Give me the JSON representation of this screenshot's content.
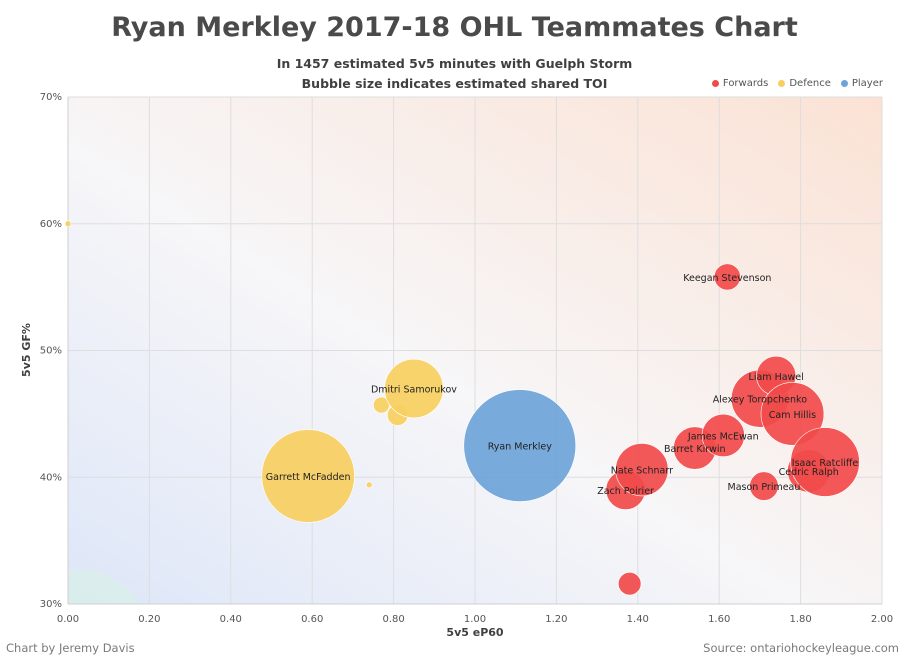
{
  "colors": {
    "forwards": "#f24a4a",
    "defence": "#f7cf5f",
    "player": "#6ea3d9",
    "grid": "#dedede",
    "axis_text": "#555555"
  },
  "chart_data": {
    "type": "scatter",
    "title": "Ryan Merkley 2017-18 OHL Teammates Chart",
    "subtitle": [
      "In 1457 estimated 5v5 minutes with Guelph Storm",
      "Bubble size indicates estimated shared TOI"
    ],
    "xlabel": "5v5 eP60",
    "ylabel": "5v5 GF%",
    "xlim": [
      0.0,
      2.0
    ],
    "ylim": [
      30,
      70
    ],
    "x_ticks": [
      "0.00",
      "0.20",
      "0.40",
      "0.60",
      "0.80",
      "1.00",
      "1.20",
      "1.40",
      "1.60",
      "1.80",
      "2.00"
    ],
    "y_ticks": [
      "30%",
      "40%",
      "50%",
      "60%",
      "70%"
    ],
    "legend": [
      "Forwards",
      "Defence",
      "Player"
    ],
    "legend_position": "top-right",
    "points": [
      {
        "label": "",
        "group": "Defence",
        "x": 0.0,
        "y": 60.0,
        "size": 2
      },
      {
        "label": "Garrett McFadden",
        "group": "Defence",
        "x": 0.59,
        "y": 40.1,
        "size": 1000
      },
      {
        "label": "",
        "group": "Defence",
        "x": 0.74,
        "y": 39.4,
        "size": 3
      },
      {
        "label": "",
        "group": "Defence",
        "x": 0.77,
        "y": 45.7,
        "size": 30
      },
      {
        "label": "",
        "group": "Defence",
        "x": 0.81,
        "y": 44.9,
        "size": 50
      },
      {
        "label": "Dmitri Samorukov",
        "group": "Defence",
        "x": 0.85,
        "y": 47.0,
        "size": 400
      },
      {
        "label": "Ryan Merkley",
        "group": "Player",
        "x": 1.11,
        "y": 42.5,
        "size": 1457
      },
      {
        "label": "Zach Poirier",
        "group": "Forwards",
        "x": 1.37,
        "y": 39.0,
        "size": 180
      },
      {
        "label": "Nate Schnarr",
        "group": "Forwards",
        "x": 1.41,
        "y": 40.6,
        "size": 320
      },
      {
        "label": "",
        "group": "Forwards",
        "x": 1.38,
        "y": 31.6,
        "size": 60
      },
      {
        "label": "Barret Kirwin",
        "group": "Forwards",
        "x": 1.54,
        "y": 42.3,
        "size": 210
      },
      {
        "label": "James McEwan",
        "group": "Forwards",
        "x": 1.61,
        "y": 43.3,
        "size": 210
      },
      {
        "label": "Keegan Stevenson",
        "group": "Forwards",
        "x": 1.62,
        "y": 55.8,
        "size": 80
      },
      {
        "label": "Alexey Toropchenko",
        "group": "Forwards",
        "x": 1.7,
        "y": 46.2,
        "size": 380
      },
      {
        "label": "Mason Primeau",
        "group": "Forwards",
        "x": 1.71,
        "y": 39.3,
        "size": 95
      },
      {
        "label": "Liam Hawel",
        "group": "Forwards",
        "x": 1.74,
        "y": 48.0,
        "size": 180
      },
      {
        "label": "Cam Hillis",
        "group": "Forwards",
        "x": 1.78,
        "y": 45.0,
        "size": 460
      },
      {
        "label": "Cedric Ralph",
        "group": "Forwards",
        "x": 1.82,
        "y": 40.5,
        "size": 210
      },
      {
        "label": "Isaac Ratcliffe",
        "group": "Forwards",
        "x": 1.86,
        "y": 41.2,
        "size": 550
      }
    ]
  },
  "footer": {
    "credit": "Chart by Jeremy Davis",
    "source": "Source: ontariohockeyleague.com"
  }
}
